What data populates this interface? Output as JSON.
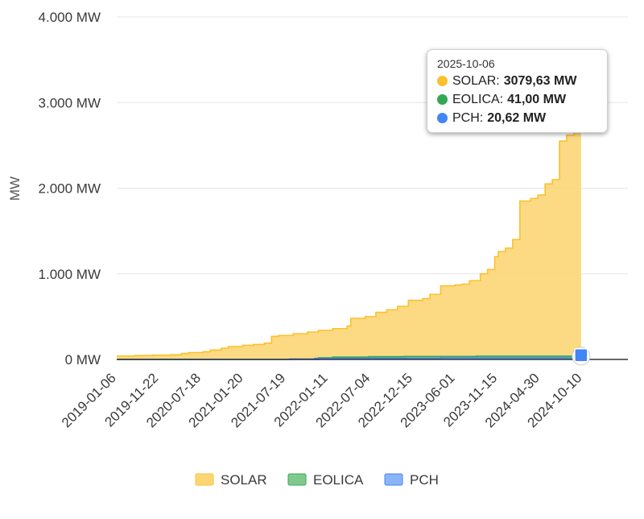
{
  "chart_data": {
    "type": "area",
    "title": "",
    "ylabel": "MW",
    "xlabel": "",
    "ylim": [
      0,
      4000
    ],
    "y_ticks": [
      {
        "value": 0,
        "label": "0 MW"
      },
      {
        "value": 1000,
        "label": "1.000 MW"
      },
      {
        "value": 2000,
        "label": "2.000 MW"
      },
      {
        "value": 3000,
        "label": "3.000 MW"
      },
      {
        "value": 4000,
        "label": "4.000 MW"
      }
    ],
    "x_ticks": [
      "2019-01-06",
      "2019-11-22",
      "2020-07-18",
      "2021-01-20",
      "2021-07-19",
      "2022-01-11",
      "2022-07-04",
      "2022-12-15",
      "2023-06-01",
      "2023-11-15",
      "2024-04-30",
      "2024-10-10"
    ],
    "x_range": [
      0,
      14.2
    ],
    "series": [
      {
        "name": "SOLAR",
        "color": "#fbc02d",
        "fill": "#fcd676",
        "points": [
          [
            0,
            40
          ],
          [
            0.5,
            45
          ],
          [
            1.0,
            50
          ],
          [
            1.5,
            55
          ],
          [
            1.8,
            70
          ],
          [
            2.0,
            80
          ],
          [
            2.4,
            90
          ],
          [
            2.6,
            110
          ],
          [
            2.9,
            130
          ],
          [
            3.1,
            150
          ],
          [
            3.5,
            165
          ],
          [
            3.8,
            175
          ],
          [
            4.1,
            190
          ],
          [
            4.3,
            270
          ],
          [
            4.5,
            280
          ],
          [
            4.9,
            300
          ],
          [
            5.3,
            320
          ],
          [
            5.6,
            340
          ],
          [
            6.0,
            360
          ],
          [
            6.4,
            390
          ],
          [
            6.5,
            480
          ],
          [
            6.9,
            500
          ],
          [
            7.2,
            550
          ],
          [
            7.5,
            580
          ],
          [
            7.8,
            620
          ],
          [
            8.1,
            690
          ],
          [
            8.5,
            710
          ],
          [
            8.7,
            760
          ],
          [
            9.0,
            860
          ],
          [
            9.4,
            870
          ],
          [
            9.6,
            880
          ],
          [
            9.8,
            920
          ],
          [
            10.1,
            1000
          ],
          [
            10.3,
            1050
          ],
          [
            10.5,
            1200
          ],
          [
            10.6,
            1260
          ],
          [
            10.8,
            1300
          ],
          [
            11.0,
            1400
          ],
          [
            11.2,
            1850
          ],
          [
            11.5,
            1880
          ],
          [
            11.7,
            1920
          ],
          [
            11.9,
            2050
          ],
          [
            12.1,
            2100
          ],
          [
            12.3,
            2550
          ],
          [
            12.5,
            2620
          ],
          [
            12.7,
            2700
          ],
          [
            12.8,
            2850
          ],
          [
            12.9,
            3079.63
          ]
        ]
      },
      {
        "name": "EOLICA",
        "color": "#34a853",
        "fill": "#7fc98f",
        "points": [
          [
            0,
            0
          ],
          [
            5.0,
            0
          ],
          [
            5.6,
            20
          ],
          [
            6.0,
            28
          ],
          [
            7.0,
            32
          ],
          [
            8.0,
            35
          ],
          [
            10.0,
            38
          ],
          [
            12.9,
            41.0
          ]
        ]
      },
      {
        "name": "PCH",
        "color": "#4285f4",
        "fill": "#8ab4f8",
        "points": [
          [
            0,
            0
          ],
          [
            4.8,
            5
          ],
          [
            5.5,
            12
          ],
          [
            7.0,
            15
          ],
          [
            9.0,
            18
          ],
          [
            12.9,
            20.62
          ]
        ]
      }
    ],
    "tooltip": {
      "date": "2025-10-06",
      "rows": [
        {
          "name": "SOLAR",
          "value": "3079,63 MW",
          "color": "#fbc02d"
        },
        {
          "name": "EOLICA",
          "value": "41,00 MW",
          "color": "#34a853"
        },
        {
          "name": "PCH",
          "value": "20,62 MW",
          "color": "#4285f4"
        }
      ]
    },
    "legend": {
      "position": "bottom"
    }
  }
}
